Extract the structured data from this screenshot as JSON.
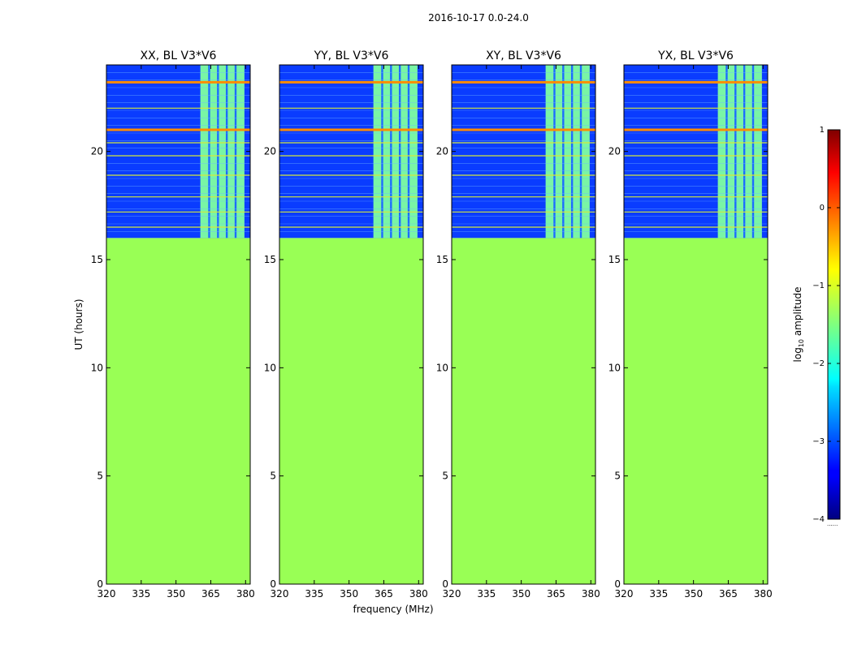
{
  "figure": {
    "suptitle": "2016-10-17 0.0-24.0",
    "xlabel": "frequency (MHz)",
    "ylabel": "UT (hours)",
    "colorbar_label_prefix": "log",
    "colorbar_label_sub": "10",
    "colorbar_label_suffix": " amplitude",
    "colorbar_footnote": "......"
  },
  "chart_data": {
    "type": "heatmap",
    "x_range": [
      320,
      382
    ],
    "y_range": [
      0,
      24
    ],
    "x_ticks": [
      320,
      335,
      350,
      365,
      380
    ],
    "y_ticks": [
      0,
      5,
      10,
      15,
      20
    ],
    "data_start_hour": 16.0,
    "fill_value_log10": -0.8,
    "background_level_log10": -3,
    "rfi_band_mhz": [
      360.5,
      379.5
    ],
    "colorbar": {
      "range": [
        -4,
        1
      ],
      "ticks": [
        1,
        0,
        -1,
        -2,
        -3,
        -4
      ],
      "tick_labels": [
        "1",
        "0",
        "−1",
        "−2",
        "−3",
        "−4"
      ],
      "colormap": "jet"
    },
    "rfi_lines_hour": [
      23.2,
      22.0,
      21.0,
      20.4,
      19.8,
      18.9,
      17.9,
      17.2,
      16.5
    ],
    "panels": [
      {
        "title": "XX, BL V3*V6"
      },
      {
        "title": "YY, BL V3*V6"
      },
      {
        "title": "XY, BL V3*V6"
      },
      {
        "title": "YX, BL V3*V6"
      }
    ],
    "colors": {
      "fill": "#99ff55",
      "background": "#0a3cff",
      "line_hot": "#ff8c00",
      "line_warm": "#d4e83a",
      "band": "#7fffa0"
    }
  }
}
